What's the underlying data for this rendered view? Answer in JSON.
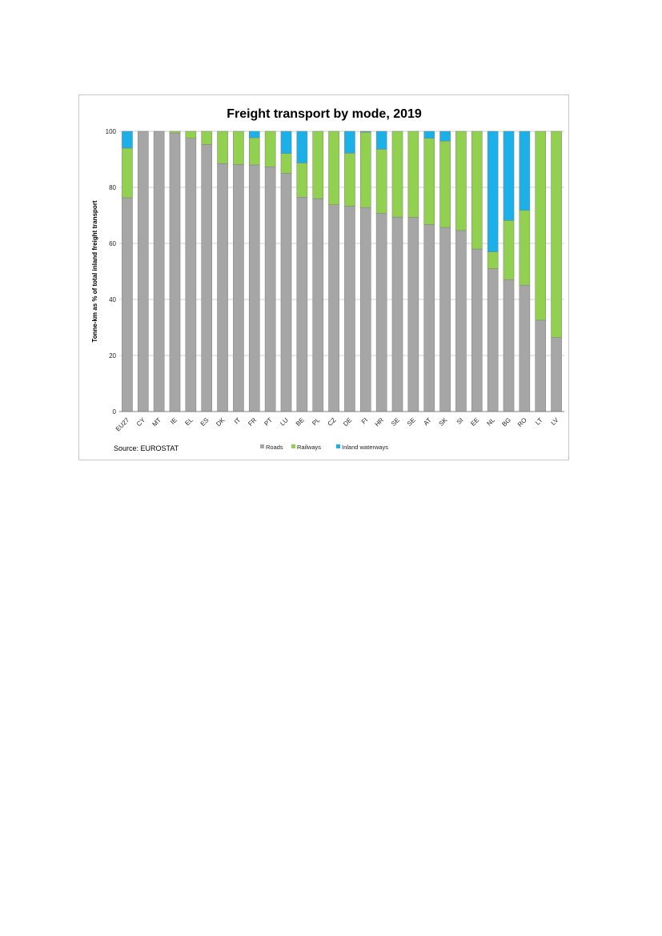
{
  "chart_data": {
    "type": "bar",
    "stacked": true,
    "title": "Freight transport by mode, 2019",
    "ylabel": "Tonne-km as % of total inland freight transport",
    "xlabel": "",
    "ylim": [
      0,
      100
    ],
    "yticks": [
      0,
      20,
      40,
      60,
      80,
      100
    ],
    "grid": true,
    "legend_position": "bottom",
    "categories": [
      "EU27",
      "CY",
      "MT",
      "IE",
      "EL",
      "ES",
      "DK",
      "IT",
      "FR",
      "PT",
      "LU",
      "BE",
      "PL",
      "CZ",
      "DE",
      "FI",
      "HR",
      "SE",
      "SE",
      "AT",
      "SK",
      "SI",
      "EE",
      "NL",
      "BG",
      "RO",
      "LT",
      "LV"
    ],
    "series": [
      {
        "name": "Roads",
        "color": "#a6a6a6",
        "values": [
          76.3,
          100,
          100,
          99.4,
          97.5,
          95.3,
          88.5,
          88.2,
          88.0,
          87.3,
          85.0,
          76.5,
          76.0,
          73.8,
          73.3,
          72.8,
          70.7,
          69.4,
          69.3,
          66.7,
          65.7,
          64.6,
          58.0,
          51.0,
          47.1,
          45.1,
          32.6,
          26.4
        ]
      },
      {
        "name": "Railways",
        "color": "#92d050",
        "values": [
          17.7,
          0,
          0,
          0.6,
          2.5,
          4.7,
          11.5,
          11.8,
          9.7,
          12.7,
          7.1,
          12.2,
          24.0,
          26.2,
          18.9,
          26.9,
          22.9,
          30.6,
          30.7,
          30.8,
          30.8,
          35.4,
          42.0,
          6.0,
          21.1,
          26.7,
          67.4,
          73.6
        ]
      },
      {
        "name": "Inland waterways",
        "color": "#1cb0e8",
        "values": [
          6.0,
          0,
          0,
          0,
          0,
          0,
          0,
          0,
          2.3,
          0,
          7.9,
          11.3,
          0,
          0,
          7.8,
          0.3,
          6.4,
          0,
          0,
          2.5,
          3.5,
          0,
          0,
          43.0,
          31.8,
          28.2,
          0,
          0
        ]
      }
    ]
  },
  "source_text": "Source: EUROSTAT"
}
